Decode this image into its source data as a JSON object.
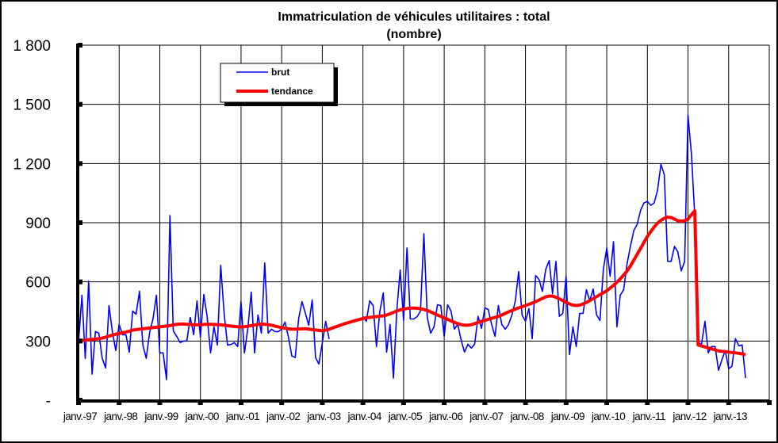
{
  "chart_data": {
    "type": "line",
    "title": "Immatriculation  de véhicules  utilitaires  : total",
    "subtitle": "(nombre)",
    "xlabel": "",
    "ylabel": "",
    "start": "1997-01",
    "frequency": "monthly",
    "ylim": [
      0,
      1800
    ],
    "yticks": [
      0,
      300,
      600,
      900,
      1200,
      1500,
      1800
    ],
    "ytick_labels": [
      "-",
      "300",
      "600",
      "900",
      "1 200",
      "1 500",
      "1 800"
    ],
    "xtick_labels": [
      "janv.-97",
      "janv.-98",
      "janv.-99",
      "janv.-00",
      "janv.-01",
      "janv.-02",
      "janv.-03",
      "janv.-04",
      "janv.-05",
      "janv.-06",
      "janv.-07",
      "janv.-08",
      "janv.-09",
      "janv.-10",
      "janv.-11",
      "janv.-12",
      "janv.-13"
    ],
    "grid": true,
    "legend_position": "top-left",
    "series": [
      {
        "name": "brut",
        "color": "#0000ff",
        "values": [
          292,
          532,
          212,
          604,
          132,
          348,
          340,
          212,
          164,
          480,
          348,
          252,
          384,
          332,
          332,
          244,
          452,
          436,
          552,
          280,
          212,
          344,
          412,
          532,
          240,
          240,
          104,
          936,
          352,
          324,
          292,
          300,
          300,
          420,
          332,
          504,
          320,
          536,
          424,
          240,
          372,
          280,
          684,
          440,
          280,
          282,
          292,
          272,
          500,
          240,
          364,
          548,
          240,
          432,
          340,
          696,
          340,
          360,
          348,
          348,
          360,
          396,
          320,
          224,
          216,
          412,
          500,
          440,
          380,
          508,
          216,
          184,
          290,
          400,
          310,
          null,
          null,
          null,
          null,
          null,
          null,
          null,
          null,
          null,
          425,
          400,
          504,
          480,
          272,
          452,
          544,
          244,
          384,
          112,
          452,
          660,
          404,
          772,
          412,
          412,
          424,
          452,
          844,
          420,
          340,
          372,
          484,
          480,
          324,
          484,
          452,
          360,
          384,
          304,
          244,
          284,
          264,
          284,
          425,
          364,
          468,
          460,
          384,
          324,
          480,
          384,
          360,
          384,
          432,
          504,
          652,
          432,
          400,
          464,
          312,
          632,
          612,
          552,
          664,
          708,
          540,
          704,
          425,
          440,
          628,
          232,
          372,
          272,
          440,
          440,
          560,
          504,
          564,
          432,
          404,
          664,
          772,
          628,
          804,
          372,
          532,
          560,
          692,
          780,
          860,
          892,
          964,
          1000,
          1008,
          988,
          1000,
          1064,
          1196,
          1144,
          704,
          704,
          780,
          752,
          656,
          704,
          1444,
          1252,
          932,
          292,
          284,
          400,
          240,
          272,
          272,
          152,
          204,
          252,
          160,
          172,
          312,
          276,
          280,
          112
        ]
      },
      {
        "name": "tendance",
        "color": "#ff0000",
        "values": [
          300,
          302,
          305,
          307,
          308,
          310,
          312,
          315,
          320,
          325,
          330,
          335,
          338,
          342,
          346,
          350,
          355,
          358,
          360,
          362,
          364,
          366,
          368,
          370,
          372,
          374,
          376,
          378,
          382,
          385,
          386,
          386,
          385,
          384,
          383,
          382,
          383,
          384,
          385,
          385,
          384,
          383,
          382,
          380,
          378,
          376,
          374,
          372,
          372,
          373,
          375,
          378,
          381,
          384,
          386,
          385,
          383,
          380,
          376,
          372,
          368,
          365,
          362,
          360,
          360,
          361,
          362,
          362,
          360,
          358,
          356,
          354,
          352,
          355,
          360,
          366,
          372,
          378,
          384,
          390,
          395,
          400,
          405,
          410,
          414,
          418,
          420,
          422,
          424,
          426,
          428,
          432,
          438,
          445,
          452,
          458,
          462,
          465,
          467,
          467,
          466,
          464,
          460,
          455,
          448,
          440,
          432,
          425,
          418,
          410,
          402,
          395,
          388,
          383,
          380,
          380,
          383,
          388,
          394,
          400,
          405,
          410,
          415,
          420,
          425,
          432,
          440,
          448,
          455,
          462,
          468,
          474,
          480,
          486,
          492,
          500,
          508,
          516,
          524,
          528,
          528,
          522,
          514,
          505,
          496,
          488,
          482,
          480,
          482,
          488,
          496,
          505,
          515,
          525,
          535,
          545,
          555,
          568,
          582,
          598,
          615,
          635,
          655,
          680,
          710,
          740,
          770,
          800,
          830,
          855,
          878,
          898,
          912,
          922,
          928,
          926,
          918,
          910,
          908,
          910,
          918,
          940,
          960,
          280,
          275,
          270,
          265,
          260,
          255,
          250,
          248,
          246,
          244,
          242,
          240,
          238,
          235,
          230
        ]
      }
    ]
  }
}
